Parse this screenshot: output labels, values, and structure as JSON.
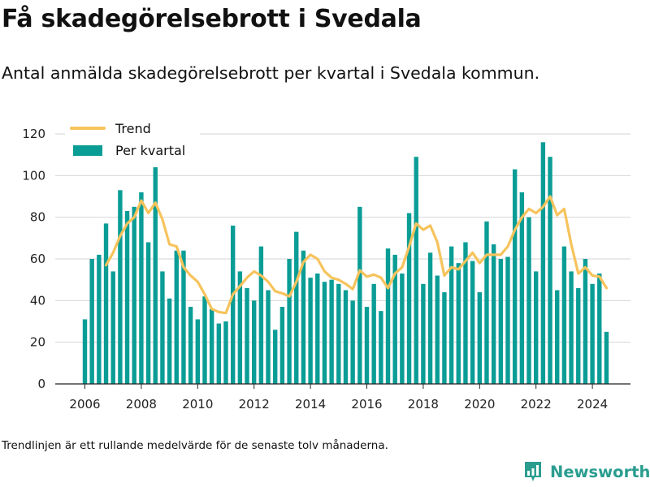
{
  "title": "Få skadegörelsebrott i Svedala",
  "subtitle": "Antal anmälda skadegörelsebrott per kvartal i Svedala kommun.",
  "footnote": "Trendlinjen är ett rullande medelvärde för de senaste tolv månaderna.",
  "brand": {
    "name": "Newsworthy",
    "logo_icon": "newsworthy-logo-icon",
    "color": "#2a9d8f"
  },
  "colors": {
    "bars": "#0a9d96",
    "trend": "#f6c35c",
    "grid": "#d6d6d6"
  },
  "chart_data": {
    "type": "bar",
    "x_start": "2006 Q1",
    "ylim": [
      0,
      120
    ],
    "yticks": [
      "0",
      "20",
      "40",
      "60",
      "80",
      "100",
      "120"
    ],
    "xticks": [
      "2006",
      "2008",
      "2010",
      "2012",
      "2014",
      "2016",
      "2018",
      "2020",
      "2022",
      "2024"
    ],
    "grid": true,
    "legend_position": "top-left",
    "series": [
      {
        "name": "Per kvartal",
        "type": "bar",
        "values": [
          31,
          60,
          62,
          77,
          54,
          93,
          83,
          85,
          92,
          68,
          104,
          54,
          41,
          64,
          64,
          37,
          31,
          42,
          36,
          29,
          30,
          76,
          54,
          46,
          40,
          66,
          45,
          26,
          37,
          60,
          73,
          64,
          51,
          53,
          49,
          50,
          48,
          45,
          40,
          85,
          37,
          48,
          35,
          65,
          62,
          53,
          82,
          109,
          48,
          63,
          52,
          44,
          66,
          58,
          68,
          59,
          44,
          78,
          67,
          60,
          61,
          103,
          92,
          80,
          54,
          116,
          109,
          45,
          66,
          54,
          46,
          60,
          48,
          53,
          25
        ]
      },
      {
        "name": "Trend",
        "type": "line",
        "values": [
          null,
          null,
          null,
          57,
          63,
          71,
          77,
          80,
          88,
          82,
          87,
          79,
          67,
          66,
          56,
          52,
          49,
          43,
          36,
          34.5,
          34,
          43,
          47,
          51,
          54,
          52,
          49,
          44.5,
          43.5,
          42,
          49,
          58.5,
          62,
          60,
          54,
          51,
          50,
          48,
          45.5,
          54.5,
          51.5,
          52.5,
          51,
          46,
          53,
          56,
          66,
          77,
          74,
          76,
          68,
          52,
          56,
          55,
          59,
          63,
          58,
          62,
          62,
          62,
          66,
          74,
          80,
          84,
          82,
          85,
          90,
          81,
          84,
          67,
          53,
          56,
          52,
          51.5,
          46
        ]
      }
    ]
  }
}
